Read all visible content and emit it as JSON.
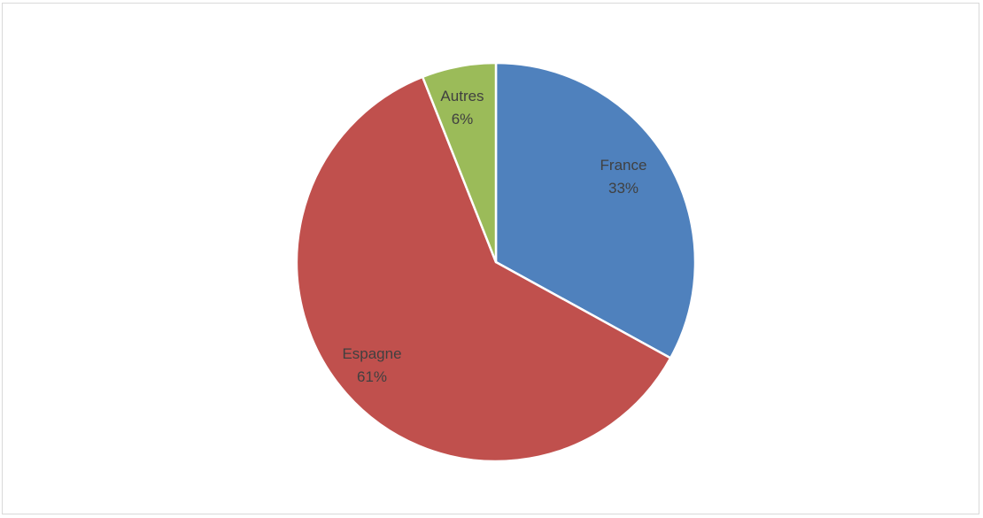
{
  "chart_data": {
    "type": "pie",
    "slices": [
      {
        "name": "France",
        "value": 33,
        "label_pct": "33%",
        "color": "#4F81BD"
      },
      {
        "name": "Espagne",
        "value": 61,
        "label_pct": "61%",
        "color": "#C0504D"
      },
      {
        "name": "Autres",
        "value": 6,
        "label_pct": "6%",
        "color": "#9BBB59"
      }
    ],
    "start_angle_deg": 0,
    "direction": "clockwise"
  }
}
